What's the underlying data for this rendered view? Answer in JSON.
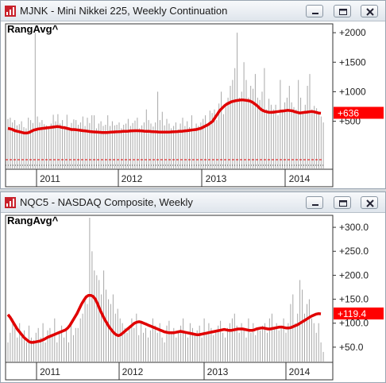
{
  "panels": [
    {
      "title": "MJNK - Mini Nikkei 225, Weekly Continuation",
      "indicator": "RangAvg^",
      "colors": {
        "bars": "#a8a8a8",
        "avg": "#e00000",
        "label_bg": "#ff0000",
        "label_text": "#ffffff",
        "indicator": "#e00000"
      },
      "chart_data": {
        "type": "bar",
        "x_labels": [
          "2011",
          "2012",
          "2013",
          "2014"
        ],
        "y_ticks": [
          "+2000",
          "+1500",
          "+1000",
          "+500"
        ],
        "y_values": [
          2000,
          1500,
          1000,
          500
        ],
        "ylim": [
          -300,
          2150
        ],
        "current_value": 636,
        "current_label": "+636",
        "has_reference_line": true,
        "series": [
          {
            "values": [
              540,
              560,
              480,
              520,
              430,
              450,
              500,
              400,
              380,
              560,
              520,
              470,
              2000,
              580,
              480,
              520,
              450,
              430,
              400,
              460,
              610,
              500,
              620,
              460,
              520,
              420,
              610,
              400,
              470,
              530,
              520,
              440,
              480,
              580,
              420,
              560,
              470,
              600,
              600,
              380,
              460,
              500,
              420,
              440,
              600,
              420,
              500,
              430,
              440,
              480,
              380,
              440,
              460,
              540,
              420,
              470,
              510,
              560,
              380,
              430,
              480,
              700,
              520,
              460,
              410,
              480,
              1000,
              520,
              660,
              430,
              540,
              460,
              380,
              420,
              480,
              360,
              460,
              560,
              420,
              500,
              400,
              600,
              380,
              460,
              420,
              480,
              540,
              600,
              420,
              680,
              640,
              700,
              520,
              800,
              1000,
              620,
              740,
              900,
              1100,
              1200,
              1400,
              2000,
              900,
              1000,
              1500,
              1200,
              900,
              1100,
              1050,
              1300,
              900,
              860,
              1000,
              1400,
              700,
              880,
              780,
              700,
              780,
              600,
              1200,
              700,
              820,
              900,
              1100,
              820,
              740,
              700,
              1200,
              900,
              640,
              780,
              1100,
              1300,
              700,
              760,
              720,
              640,
              580,
              480
            ]
          },
          {
            "values": [
              380,
              370,
              360,
              340,
              330,
              320,
              310,
              300,
              300,
              310,
              330,
              350,
              360,
              370,
              375,
              380,
              385,
              390,
              395,
              400,
              405,
              410,
              405,
              395,
              390,
              380,
              370,
              360,
              360,
              355,
              350,
              345,
              340,
              335,
              330,
              325,
              320,
              318,
              315,
              312,
              310,
              310,
              310,
              312,
              315,
              318,
              320,
              322,
              325,
              328,
              330,
              332,
              335,
              338,
              340,
              340,
              338,
              335,
              332,
              330,
              328,
              325,
              322,
              320,
              318,
              316,
              315,
              315,
              316,
              318,
              320,
              322,
              325,
              328,
              330,
              335,
              340,
              345,
              350,
              355,
              360,
              370,
              380,
              400,
              420,
              440,
              470,
              500,
              560,
              620,
              680,
              720,
              760,
              790,
              810,
              830,
              840,
              850,
              855,
              860,
              860,
              855,
              850,
              840,
              820,
              790,
              760,
              720,
              690,
              670,
              660,
              650,
              650,
              655,
              660,
              665,
              670,
              675,
              680,
              685,
              680,
              675,
              660,
              650,
              640,
              645,
              650,
              655,
              660,
              665,
              660,
              650,
              640,
              636
            ]
          }
        ]
      }
    },
    {
      "title": "NQC5 - NASDAQ Composite, Weekly",
      "indicator": "RangAvg^",
      "colors": {
        "bars": "#a8a8a8",
        "avg": "#e00000",
        "label_bg": "#ff0000",
        "label_text": "#ffffff",
        "indicator": "#e00000"
      },
      "chart_data": {
        "type": "bar",
        "x_labels": [
          "2011",
          "2012",
          "2013",
          "2014"
        ],
        "y_ticks": [
          "+300.0",
          "+250.0",
          "+200.0",
          "+150.0",
          "+100.0",
          "+50.0"
        ],
        "y_values": [
          300,
          250,
          200,
          150,
          100,
          50
        ],
        "ylim": [
          20,
          325
        ],
        "current_value": 119.4,
        "current_label": "+119.4",
        "has_reference_line": false,
        "series": [
          {
            "values": [
              60,
              80,
              110,
              90,
              70,
              100,
              75,
              85,
              60,
              95,
              70,
              65,
              80,
              90,
              70,
              100,
              60,
              85,
              90,
              75,
              110,
              60,
              80,
              95,
              70,
              85,
              60,
              100,
              75,
              90,
              90,
              110,
              120,
              150,
              140,
              320,
              250,
              210,
              200,
              190,
              160,
              210,
              170,
              150,
              140,
              160,
              120,
              130,
              110,
              100,
              90,
              80,
              95,
              110,
              90,
              120,
              75,
              100,
              80,
              90,
              70,
              85,
              110,
              95,
              80,
              100,
              70,
              60,
              95,
              105,
              80,
              90,
              70,
              85,
              95,
              110,
              80,
              70,
              100,
              90,
              75,
              85,
              95,
              70,
              110,
              80,
              100,
              90,
              75,
              85,
              95,
              105,
              80,
              70,
              90,
              100,
              110,
              120,
              95,
              80,
              100,
              90,
              70,
              110,
              80,
              100,
              75,
              90,
              85,
              95,
              100,
              80,
              110,
              120,
              90,
              100,
              85,
              95,
              110,
              80,
              100,
              140,
              160,
              100,
              120,
              190,
              170,
              120,
              140,
              150,
              110,
              100,
              80,
              100,
              60,
              40
            ]
          },
          {
            "values": [
              118,
              112,
              104,
              96,
              88,
              82,
              76,
              70,
              66,
              62,
              60,
              60,
              61,
              62,
              63,
              65,
              67,
              70,
              72,
              74,
              76,
              78,
              80,
              82,
              84,
              86,
              90,
              96,
              104,
              112,
              120,
              130,
              140,
              148,
              155,
              158,
              158,
              156,
              150,
              140,
              128,
              118,
              108,
              100,
              92,
              86,
              80,
              76,
              74,
              76,
              80,
              84,
              88,
              92,
              96,
              100,
              102,
              103,
              102,
              100,
              98,
              96,
              94,
              92,
              90,
              88,
              86,
              84,
              82,
              81,
              80,
              80,
              80,
              81,
              82,
              83,
              82,
              81,
              80,
              79,
              78,
              77,
              76,
              76,
              77,
              78,
              79,
              80,
              81,
              82,
              83,
              84,
              85,
              86,
              87,
              86,
              85,
              85,
              86,
              87,
              88,
              88,
              88,
              87,
              86,
              85,
              85,
              86,
              88,
              89,
              90,
              90,
              89,
              88,
              88,
              89,
              90,
              91,
              92,
              92,
              91,
              90,
              90,
              91,
              93,
              95,
              97,
              100,
              103,
              106,
              109,
              112,
              115,
              117,
              119,
              120,
              119.4
            ]
          }
        ]
      }
    }
  ]
}
